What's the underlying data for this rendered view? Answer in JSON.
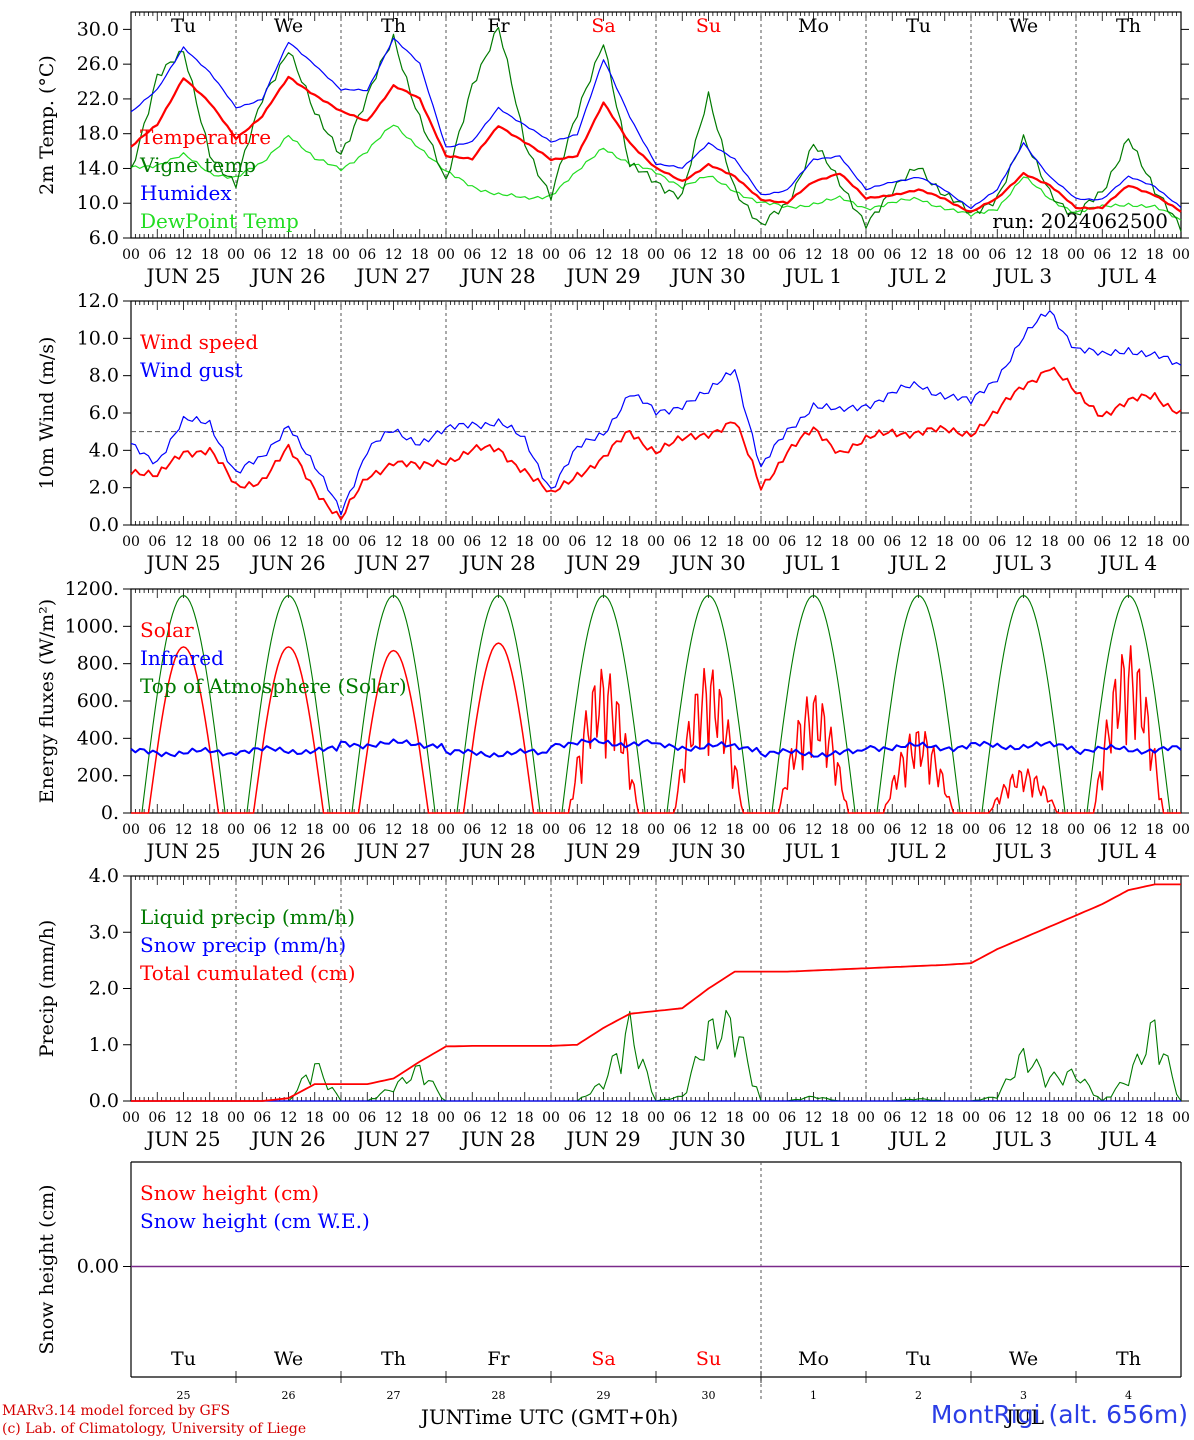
{
  "run_label": "run: 2024062500",
  "footer": {
    "credit_line1": "MARv3.14 model forced by GFS",
    "credit_line2": "(c) Lab. of Climatology, University of Liege",
    "station": "MontRigi (alt. 656m)",
    "xlabel": "Time UTC (GMT+0h)",
    "month_left": "JUN",
    "month_right": "JUL"
  },
  "colors": {
    "red": "#ff0000",
    "green": "#007a00",
    "blue": "#0000ff",
    "lightgreen": "#22dd22",
    "purple": "#7a2a8a",
    "grid": "#555555"
  },
  "days": [
    {
      "name": "Tu",
      "date": "JUN 25",
      "num": "25",
      "weekend": false
    },
    {
      "name": "We",
      "date": "JUN 26",
      "num": "26",
      "weekend": false
    },
    {
      "name": "Th",
      "date": "JUN 27",
      "num": "27",
      "weekend": false
    },
    {
      "name": "Fr",
      "date": "JUN 28",
      "num": "28",
      "weekend": false
    },
    {
      "name": "Sa",
      "date": "JUN 29",
      "num": "29",
      "weekend": true
    },
    {
      "name": "Su",
      "date": "JUN 30",
      "num": "30",
      "weekend": true
    },
    {
      "name": "Mo",
      "date": "JUL  1",
      "num": "1",
      "weekend": false
    },
    {
      "name": "Tu",
      "date": "JUL  2",
      "num": "2",
      "weekend": false
    },
    {
      "name": "We",
      "date": "JUL  3",
      "num": "3",
      "weekend": false
    },
    {
      "name": "Th",
      "date": "JUL  4",
      "num": "4",
      "weekend": false
    }
  ],
  "hour_ticks": [
    "00",
    "06",
    "12",
    "18"
  ],
  "chart_data": [
    {
      "type": "line",
      "ylabel": "2m Temp. (°C)",
      "ylim": [
        6,
        32
      ],
      "yticks": [
        "6.0",
        "10.0",
        "14.0",
        "18.0",
        "22.0",
        "26.0",
        "30.0"
      ],
      "x": [
        0,
        6,
        12,
        18,
        24,
        30,
        36,
        42,
        48,
        54,
        60,
        66,
        72,
        78,
        84,
        90,
        96,
        102,
        108,
        114,
        120,
        126,
        132,
        138,
        144,
        150,
        156,
        162,
        168,
        174,
        180,
        186,
        192,
        198,
        204,
        210,
        216,
        222,
        228,
        234,
        240
      ],
      "series": [
        {
          "name": "Temperature",
          "color": "red",
          "values": [
            16.5,
            19,
            24.5,
            21.5,
            17.5,
            20,
            24.5,
            22.5,
            20.5,
            19.5,
            23.5,
            22,
            15.5,
            15,
            19,
            17,
            15,
            15.5,
            21.5,
            17,
            14,
            12.5,
            14.5,
            13,
            10.5,
            10,
            12.5,
            13.5,
            10.5,
            11,
            11.5,
            10.5,
            9,
            10.5,
            13.5,
            12,
            9.5,
            9.5,
            12,
            11,
            9
          ]
        },
        {
          "name": "Vigne temp",
          "color": "green",
          "values": [
            13.5,
            25,
            27,
            16,
            12,
            22,
            28,
            20,
            16,
            22,
            29,
            20,
            12,
            24,
            30,
            17,
            11,
            20,
            29,
            14,
            12.5,
            11,
            22,
            12,
            7,
            10,
            17,
            12,
            8,
            11,
            14.5,
            11,
            8.5,
            11,
            17,
            11.5,
            8.5,
            11,
            18,
            11,
            7.5
          ]
        },
        {
          "name": "Humidex",
          "color": "blue",
          "values": [
            20.5,
            23,
            28,
            25,
            21,
            22,
            28.5,
            26,
            23,
            23,
            29,
            26,
            16.5,
            17,
            21,
            19,
            17,
            18,
            26.5,
            20,
            14.5,
            14,
            17,
            15,
            11,
            11.5,
            15,
            15.5,
            11.5,
            12.5,
            13,
            11.5,
            9.5,
            11.5,
            17,
            13,
            10.5,
            10.5,
            13,
            12,
            9.5
          ]
        },
        {
          "name": "DewPoint Temp",
          "color": "lightgreen",
          "values": [
            14,
            14.5,
            15.5,
            13.5,
            13,
            14.5,
            18,
            15,
            14,
            16,
            19,
            16.5,
            13.5,
            12,
            11,
            10.5,
            11,
            13.5,
            16.5,
            14.5,
            13.5,
            12,
            13,
            11.5,
            10,
            9.5,
            10,
            10.5,
            9.5,
            10,
            10.5,
            9.5,
            8.5,
            9.5,
            13,
            10.5,
            9,
            9.5,
            10,
            9.5,
            8
          ]
        }
      ]
    },
    {
      "type": "line",
      "ylabel": "10m Wind (m/s)",
      "ylim": [
        0,
        12
      ],
      "yticks": [
        "0.0",
        "2.0",
        "4.0",
        "6.0",
        "8.0",
        "10.0",
        "12.0"
      ],
      "reference_line": 5,
      "x": [
        0,
        6,
        12,
        18,
        24,
        30,
        36,
        42,
        48,
        54,
        60,
        66,
        72,
        78,
        84,
        90,
        96,
        102,
        108,
        114,
        120,
        126,
        132,
        138,
        144,
        150,
        156,
        162,
        168,
        174,
        180,
        186,
        192,
        198,
        204,
        210,
        216,
        222,
        228,
        234,
        240
      ],
      "series": [
        {
          "name": "Wind speed",
          "color": "red",
          "values": [
            3,
            2.5,
            4,
            4,
            2,
            2.5,
            4,
            2,
            0.3,
            2.5,
            3.5,
            3,
            3.5,
            4,
            4,
            3,
            1.5,
            2.8,
            3.5,
            5,
            4,
            4.5,
            5,
            5.5,
            2,
            4,
            5,
            4,
            4.5,
            5,
            5,
            5,
            5,
            6,
            7.5,
            8.5,
            7,
            6,
            6.5,
            7,
            6
          ]
        },
        {
          "name": "Wind gust",
          "color": "blue",
          "values": [
            4.2,
            3.5,
            5.5,
            5.5,
            2.8,
            3.5,
            5.5,
            3,
            0.8,
            4,
            5,
            4.5,
            5,
            5.5,
            5.5,
            4.5,
            2,
            4,
            5,
            7,
            6,
            6.5,
            7,
            8.5,
            3,
            5,
            6.5,
            6,
            6.5,
            7,
            7.5,
            7,
            6.5,
            8,
            10,
            11.5,
            9.5,
            9,
            9.5,
            9,
            8.5
          ]
        }
      ]
    },
    {
      "type": "line",
      "ylabel": "Energy fluxes (W/m²)",
      "ylim": [
        0,
        1200
      ],
      "yticks": [
        "0.",
        "200.",
        "400.",
        "600.",
        "800.",
        "1000.",
        "1200."
      ],
      "series": [
        {
          "name": "Solar",
          "color": "red",
          "daily_peak": [
            890,
            890,
            870,
            910,
            780,
            790,
            650,
            460,
            240,
            900
          ]
        },
        {
          "name": "Infrared",
          "color": "blue",
          "daily_mean": [
            325,
            335,
            370,
            320,
            375,
            355,
            320,
            355,
            360,
            340
          ]
        },
        {
          "name": "Top of Atmosphere (Solar)",
          "color": "green",
          "daily_peak": [
            1165,
            1165,
            1165,
            1165,
            1165,
            1165,
            1165,
            1165,
            1165,
            1165
          ]
        }
      ]
    },
    {
      "type": "line",
      "ylabel": "Precip (mm/h)",
      "ylim": [
        0,
        4
      ],
      "yticks": [
        "0.0",
        "1.0",
        "2.0",
        "3.0",
        "4.0"
      ],
      "x": [
        0,
        6,
        12,
        18,
        24,
        30,
        36,
        42,
        48,
        54,
        60,
        66,
        72,
        78,
        84,
        90,
        96,
        102,
        108,
        114,
        120,
        126,
        132,
        138,
        144,
        150,
        156,
        162,
        168,
        174,
        180,
        186,
        192,
        198,
        204,
        210,
        216,
        222,
        228,
        234,
        240
      ],
      "series": [
        {
          "name": "Liquid precip (mm/h)",
          "color": "green",
          "values": [
            0,
            0,
            0,
            0,
            0,
            0,
            0,
            0.8,
            0,
            0,
            0.3,
            0.7,
            0,
            0,
            0,
            0,
            0,
            0,
            0.4,
            1.6,
            0,
            0.1,
            1.5,
            1.7,
            0,
            0,
            0.1,
            0,
            0,
            0,
            0.05,
            0,
            0,
            0.1,
            1.0,
            0.5,
            0.6,
            0,
            0.5,
            1.6,
            0
          ]
        },
        {
          "name": "Snow precip (mm/h)",
          "color": "blue",
          "values": [
            0,
            0,
            0,
            0,
            0,
            0,
            0,
            0,
            0,
            0,
            0,
            0,
            0,
            0,
            0,
            0,
            0,
            0,
            0,
            0,
            0,
            0,
            0,
            0,
            0,
            0,
            0,
            0,
            0,
            0,
            0,
            0,
            0,
            0,
            0,
            0,
            0,
            0,
            0,
            0,
            0
          ]
        },
        {
          "name": "Total cumulated (cm)",
          "color": "red",
          "values": [
            0,
            0,
            0,
            0,
            0,
            0,
            0.05,
            0.3,
            0.3,
            0.3,
            0.4,
            0.7,
            0.97,
            0.98,
            0.98,
            0.98,
            0.98,
            1.0,
            1.3,
            1.55,
            1.6,
            1.65,
            2.0,
            2.3,
            2.3,
            2.3,
            2.32,
            2.34,
            2.36,
            2.38,
            2.4,
            2.42,
            2.45,
            2.7,
            2.9,
            3.1,
            3.3,
            3.5,
            3.75,
            3.85,
            3.85
          ]
        }
      ]
    },
    {
      "type": "line",
      "ylabel": "Snow height (cm)",
      "yticks": [
        "0.00"
      ],
      "series": [
        {
          "name": "Snow height (cm)",
          "color": "red",
          "values": [
            0,
            0
          ]
        },
        {
          "name": "Snow height (cm W.E.)",
          "color": "blue",
          "values": [
            0,
            0
          ]
        }
      ]
    }
  ]
}
